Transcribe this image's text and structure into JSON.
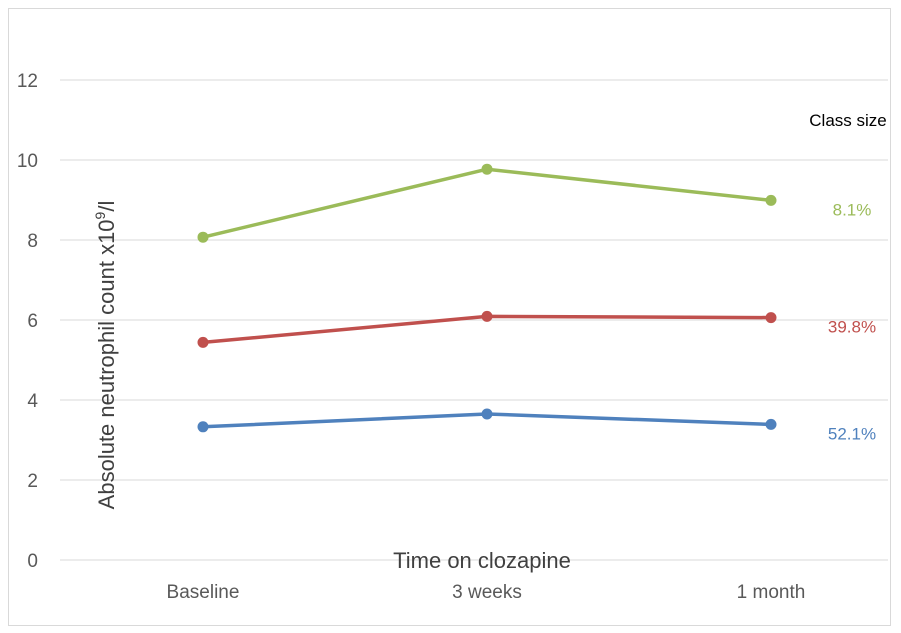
{
  "chart_data": {
    "type": "line",
    "categories": [
      "Baseline",
      "3 weeks",
      "1 month"
    ],
    "xlabel": "Time on clozapine",
    "ylabel_prefix": "Absolute neutrophil count x10",
    "ylabel_sup": "9",
    "ylabel_suffix": "/l",
    "ylim": [
      0,
      13
    ],
    "yticks": [
      0,
      2,
      4,
      6,
      8,
      10,
      12
    ],
    "grid": true,
    "legend_title": "Class size",
    "series": [
      {
        "label": "8.1%",
        "color": "#9bbb59",
        "values": [
          8.07,
          9.77,
          8.99
        ]
      },
      {
        "label": "39.8%",
        "color": "#c0504d",
        "values": [
          5.44,
          6.09,
          6.06
        ]
      },
      {
        "label": "52.1%",
        "color": "#4f81bd",
        "values": [
          3.33,
          3.65,
          3.39
        ]
      }
    ]
  }
}
